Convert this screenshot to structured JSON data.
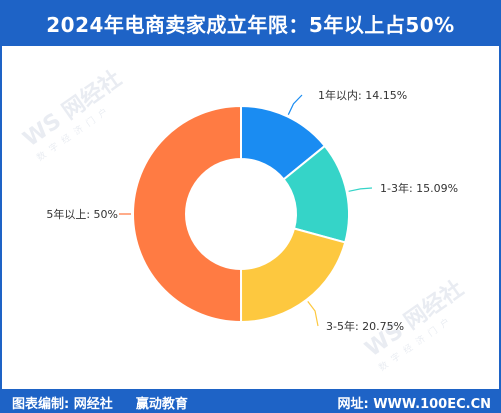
{
  "title": "2024年电商卖家成立年限：5年以上占50%",
  "footer": {
    "editor_label": "图表编制:",
    "editor_org1": "网经社",
    "editor_org2": "赢动教育",
    "website_label": "网址:",
    "website_value": "WWW.100EC.CN"
  },
  "watermark": {
    "mark": "WS",
    "name": "网经社",
    "tagline": "数字经济门户"
  },
  "colors": {
    "brand": "#1e63c6",
    "slice_1": "#1a8cf2",
    "slice_2": "#35d4c8",
    "slice_3": "#fdc83f",
    "slice_4": "#ff7b43"
  },
  "chart_data": {
    "type": "pie",
    "donut": true,
    "categories": [
      "1年以内",
      "1-3年",
      "3-5年",
      "5年以上"
    ],
    "values": [
      14.15,
      15.09,
      20.75,
      50
    ],
    "labels": [
      "1年以内: 14.15%",
      "1-3年: 15.09%",
      "3-5年: 20.75%",
      "5年以上: 50%"
    ],
    "unit": "%"
  }
}
